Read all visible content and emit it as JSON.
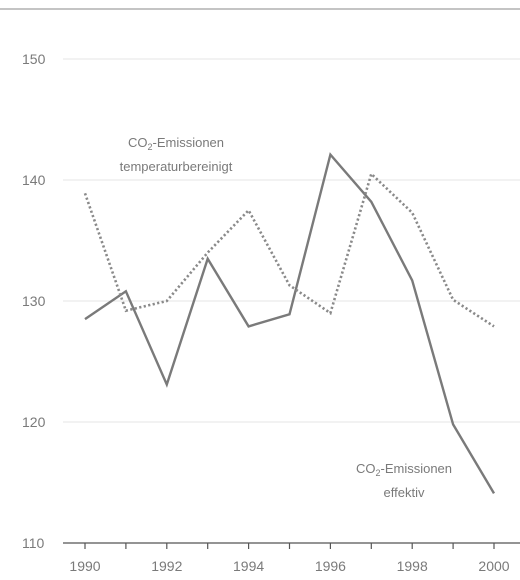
{
  "chart_data": {
    "type": "line",
    "x": [
      1990,
      1991,
      1992,
      1993,
      1994,
      1995,
      1996,
      1997,
      1998,
      1999,
      2000
    ],
    "series": [
      {
        "key": "effektiv",
        "style": "solid",
        "color": "#7a7a7a",
        "values": [
          128.5,
          130.8,
          123.1,
          133.5,
          127.9,
          128.9,
          142.1,
          138.2,
          131.7,
          119.8,
          114.1
        ]
      },
      {
        "key": "temperaturbereinigt",
        "style": "dotted",
        "color": "#8a8a8a",
        "values": [
          138.9,
          129.2,
          130.0,
          134.0,
          137.5,
          131.3,
          129.0,
          140.5,
          137.3,
          130.1,
          127.9
        ]
      }
    ],
    "xticks": [
      1990,
      1991,
      1992,
      1993,
      1994,
      1995,
      1996,
      1997,
      1998,
      1999,
      2000
    ],
    "xtick_labels": [
      "1990",
      "1992",
      "1994",
      "1996",
      "1998",
      "2000"
    ],
    "xtick_label_values": [
      1990,
      1992,
      1994,
      1996,
      1998,
      2000
    ],
    "yticks": [
      110,
      120,
      130,
      140,
      150
    ],
    "ytick_labels": [
      "110",
      "120",
      "130",
      "140",
      "150"
    ],
    "xlim": [
      1989.5,
      2000.5
    ],
    "ylim": [
      110,
      153
    ],
    "grid": true,
    "annotations": {
      "temperaturbereinigt": {
        "prefix": "CO",
        "sub": "2",
        "suffix": "-Emissionen",
        "line2": "temperaturbereinigt"
      },
      "effektiv": {
        "prefix": "CO",
        "sub": "2",
        "suffix": "-Emissionen",
        "line2": "effektiv"
      }
    }
  }
}
